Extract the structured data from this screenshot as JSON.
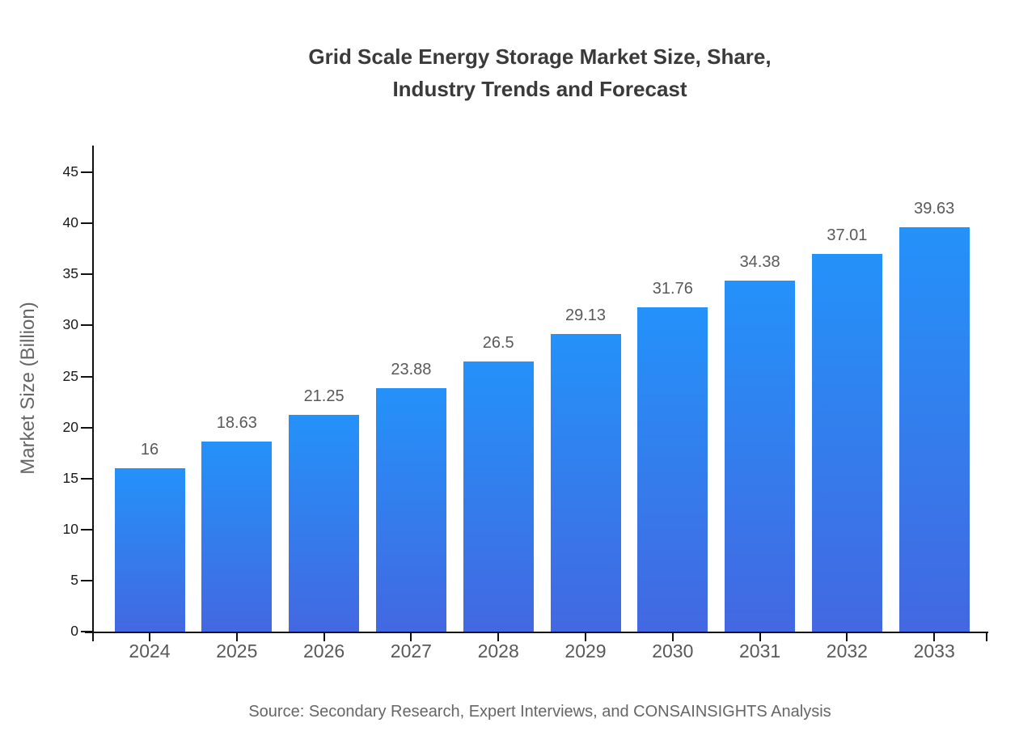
{
  "page": {
    "background": "#ffffff"
  },
  "chart_data": {
    "type": "bar",
    "title": "Grid Scale Energy Storage Market Size, Share, Industry Trends and Forecast",
    "title_lines": [
      "Grid Scale Energy Storage Market Size, Share,",
      "Industry Trends and Forecast"
    ],
    "categories": [
      "2024",
      "2025",
      "2026",
      "2027",
      "2028",
      "2029",
      "2030",
      "2031",
      "2032",
      "2033"
    ],
    "values": [
      16,
      18.63,
      21.25,
      23.88,
      26.5,
      29.13,
      31.76,
      34.38,
      37.01,
      39.63
    ],
    "value_labels": [
      "16",
      "18.63",
      "21.25",
      "23.88",
      "26.5",
      "29.13",
      "31.76",
      "34.38",
      "37.01",
      "39.63"
    ],
    "xlabel": "",
    "ylabel": "Market Size (Billion)",
    "ylim": [
      0,
      47
    ],
    "yticks": [
      0,
      5,
      10,
      15,
      20,
      25,
      30,
      35,
      40,
      45
    ],
    "grid": false,
    "legend": "none",
    "source": "Source: Secondary Research, Expert Interviews, and CONSAINSIGHTS Analysis",
    "colors": {
      "bar_gradient_top": "#2492f9",
      "bar_gradient_bottom": "#4368e1",
      "title": "#3a3a3a",
      "axis": "#111111",
      "y_tick_label": "#1a1a1a",
      "category_label": "#595959",
      "value_label": "#595959",
      "axis_title": "#666666",
      "source": "#666666"
    }
  }
}
